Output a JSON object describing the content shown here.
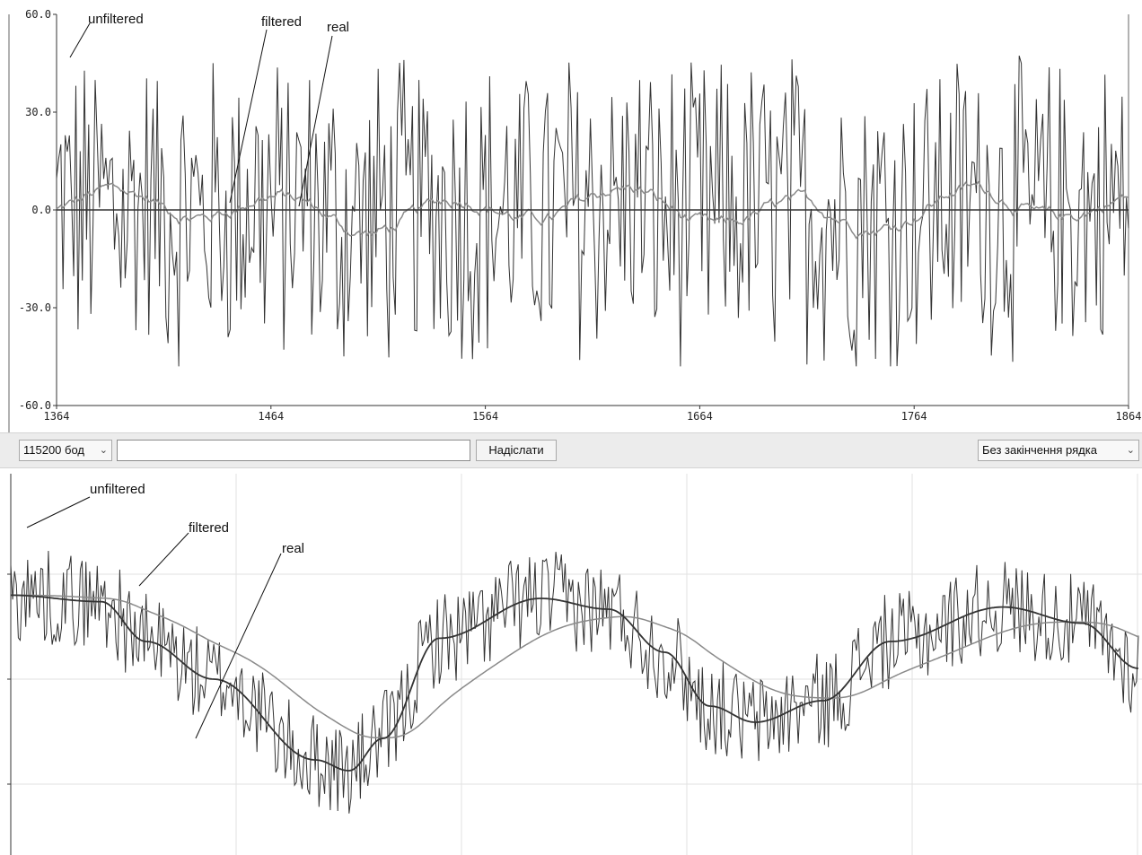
{
  "chart_data": [
    {
      "type": "line",
      "title": "",
      "y_ticks": [
        "60.0",
        "30.0",
        "0.0",
        "-30.0",
        "-60.0"
      ],
      "ylim": [
        -60,
        60
      ],
      "x_ticks": [
        "1364",
        "1464",
        "1564",
        "1664",
        "1764",
        "1864"
      ],
      "xlim": [
        1364,
        1864
      ],
      "grid": false,
      "series": [
        {
          "name": "unfiltered",
          "description": "random noise roughly uniform between -48 and 50"
        },
        {
          "name": "filtered",
          "description": "smoothed trace mostly between -3 and 9"
        },
        {
          "name": "real",
          "values_constant": 0
        }
      ],
      "annotations": [
        "unfiltered",
        "filtered",
        "real"
      ]
    },
    {
      "type": "line",
      "title": "",
      "grid": true,
      "series": [
        {
          "name": "unfiltered",
          "description": "noisy oscillation around the real sine wave"
        },
        {
          "name": "filtered",
          "description": "smoothed and phase-lagged copy of the signal"
        },
        {
          "name": "real",
          "description": "slow sine-like wave"
        }
      ],
      "annotations": [
        "unfiltered",
        "filtered",
        "real"
      ]
    }
  ],
  "plot1": {
    "labels": {
      "unfiltered": "unfiltered",
      "filtered": "filtered",
      "real": "real"
    }
  },
  "plot2": {
    "labels": {
      "unfiltered": "unfiltered",
      "filtered": "filtered",
      "real": "real"
    }
  },
  "toolbar": {
    "baud_rate": "115200 бод",
    "message_value": "",
    "send_label": "Надіслати",
    "line_ending": "Без закінчення рядка"
  },
  "colors": {
    "unfiltered": "#333333",
    "filtered": "#8a8a8a",
    "real": "#333333",
    "grid": "#e2e2e2",
    "toolbar": "#ececec"
  }
}
